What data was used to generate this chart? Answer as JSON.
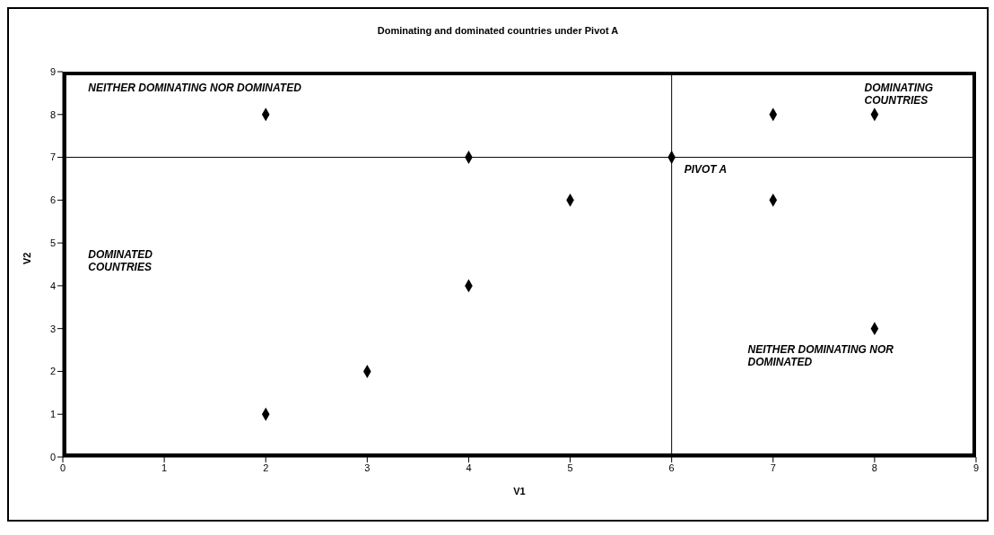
{
  "chart_data": {
    "type": "scatter",
    "title": "Dominating and dominated countries under Pivot A",
    "xlabel": "V1",
    "ylabel": "V2",
    "x": [
      2,
      2,
      3,
      4,
      4,
      5,
      6,
      7,
      7,
      8,
      8
    ],
    "values": [
      8,
      1,
      2,
      7,
      4,
      6,
      7,
      8,
      6,
      8,
      3
    ],
    "color": "#000000",
    "marker": "diamond",
    "xlim": [
      0,
      9
    ],
    "xticks": [
      0,
      1,
      2,
      3,
      4,
      5,
      6,
      7,
      8,
      9
    ],
    "ylim": [
      0,
      9
    ],
    "yticks": [
      0,
      1,
      2,
      3,
      4,
      5,
      6,
      7,
      8,
      9
    ],
    "grid": false,
    "ref_lines": [
      {
        "axis": "x",
        "value": 6,
        "color": "#000000"
      },
      {
        "axis": "y",
        "value": 7,
        "color": "#000000"
      }
    ],
    "annotations": [
      "NEITHER DOMINATING NOR DOMINATED",
      "DOMINATING COUNTRIES",
      "DOMINATED COUNTRIES",
      "NEITHER DOMINATING NOR DOMINATED",
      {
        "text": "PIVOT A",
        "x": 6,
        "y": 7
      }
    ]
  }
}
